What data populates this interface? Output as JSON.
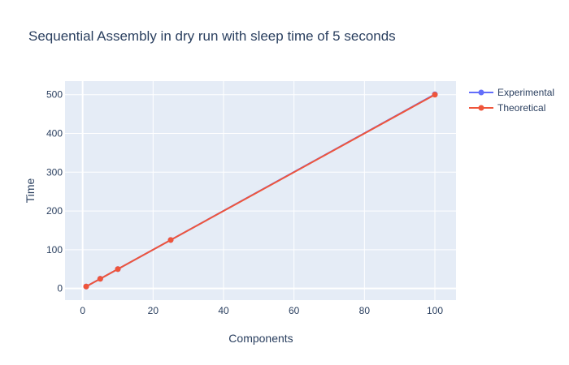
{
  "chart_data": {
    "type": "line",
    "title": "Sequential Assembly in dry run with sleep time of 5 seconds",
    "xlabel": "Components",
    "ylabel": "Time",
    "xlim": [
      -5,
      106
    ],
    "ylim": [
      -30,
      535
    ],
    "xticks": [
      0,
      20,
      40,
      60,
      80,
      100
    ],
    "yticks": [
      0,
      100,
      200,
      300,
      400,
      500
    ],
    "grid": true,
    "legend_position": "top-right",
    "series": [
      {
        "name": "Experimental",
        "color": "#636efa",
        "x": [
          1,
          5,
          10,
          25,
          100
        ],
        "y": [
          5.1,
          25.1,
          50.1,
          125.2,
          501
        ]
      },
      {
        "name": "Theoretical",
        "color": "#ef553b",
        "x": [
          1,
          5,
          10,
          25,
          100
        ],
        "y": [
          5,
          25,
          50,
          125,
          500
        ]
      }
    ]
  }
}
